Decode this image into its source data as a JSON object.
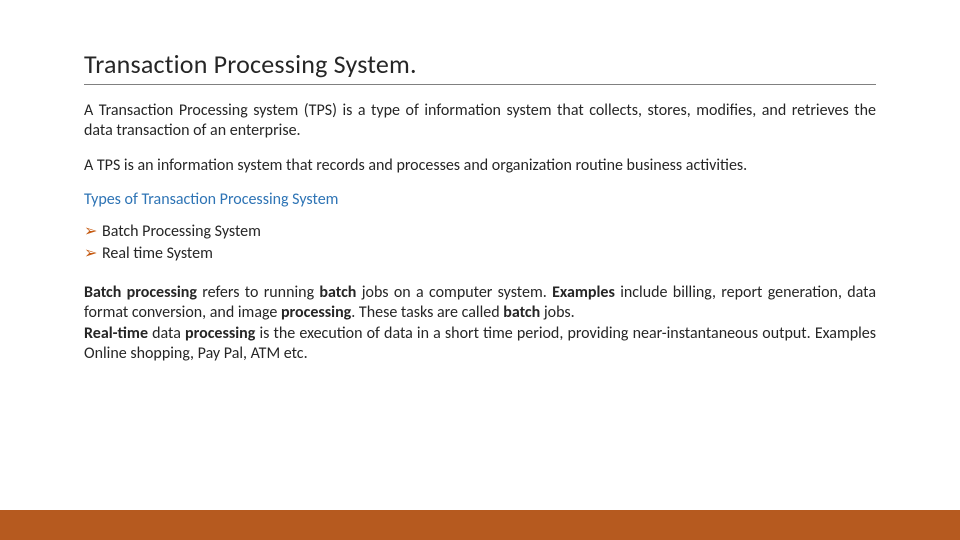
{
  "title": "Transaction Processing  System.",
  "para1": "A Transaction Processing system (TPS) is a type of information system that collects, stores, modifies, and retrieves the data transaction of an enterprise.",
  "para2": "A TPS is an information system that records and processes and organization routine business activities.",
  "subhead": "Types of Transaction Processing System",
  "bullets": {
    "b1": "Batch Processing System",
    "b2": "Real time System"
  },
  "details": {
    "batch_prefix": "Batch processing ",
    "batch_mid1": "refers to running ",
    "batch_bold2": "batch ",
    "batch_mid2": "jobs on a computer system. ",
    "examples_label": "Examples ",
    "batch_mid3": "include billing, report generation, data format conversion, and image ",
    "processing_bold": "processing",
    "batch_mid4": ". These tasks are called ",
    "batch_bold3": "batch ",
    "batch_end": "jobs.",
    "rt_prefix": "Real-time ",
    "rt_mid1": "data ",
    "rt_bold2": "processing ",
    "rt_rest": "is the execution of data in a short time period, providing near-instantaneous output. Examples Online shopping, Pay Pal, ATM etc."
  },
  "colors": {
    "title_text": "#262626",
    "subhead_text": "#2e74b5",
    "bullet_arrow": "#c55a11",
    "bottom_bar": "#b65a1f",
    "divider": "#808080",
    "background": "#ffffff"
  },
  "typography": {
    "title_fontsize": 26,
    "body_fontsize": 16,
    "font_family": "Calibri"
  }
}
